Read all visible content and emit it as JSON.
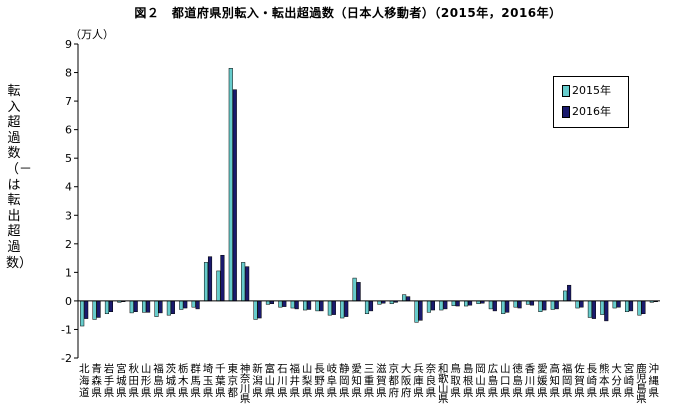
{
  "title": "図２　都道府県別転入・転出超過数（日本人移動者）（2015年，2016年）",
  "unit": "（万人）",
  "ylabel": "転入超過数（－は転出超過数）",
  "legend": {
    "items": [
      {
        "label": "2015年",
        "color": "#66cccc"
      },
      {
        "label": "2016年",
        "color": "#1a1a6e"
      }
    ]
  },
  "chart_data": {
    "type": "bar",
    "title": "図２　都道府県別転入・転出超過数（日本人移動者）（2015年，2016年）",
    "ylabel": "転入超過数（－は転出超過数）",
    "unit": "（万人）",
    "ylim": [
      -2,
      9
    ],
    "yticks": [
      -2,
      -1,
      0,
      1,
      2,
      3,
      4,
      5,
      6,
      7,
      8,
      9
    ],
    "grid": false,
    "legend_position": "top-right",
    "categories": [
      "北海道",
      "青森県",
      "岩手県",
      "宮城県",
      "秋田県",
      "山形県",
      "福島県",
      "茨城県",
      "栃木県",
      "群馬県",
      "埼玉県",
      "千葉県",
      "東京都",
      "神奈川県",
      "新潟県",
      "富山県",
      "石川県",
      "福井県",
      "山梨県",
      "長野県",
      "岐阜県",
      "静岡県",
      "愛知県",
      "三重県",
      "滋賀県",
      "京都府",
      "大阪府",
      "兵庫県",
      "奈良県",
      "和歌山県",
      "鳥取県",
      "島根県",
      "岡山県",
      "広島県",
      "山口県",
      "徳島県",
      "香川県",
      "愛媛県",
      "高知県",
      "福岡県",
      "佐賀県",
      "長崎県",
      "熊本県",
      "大分県",
      "宮崎県",
      "鹿児島県",
      "沖縄県"
    ],
    "category_labels": [
      "北海道",
      "青森県",
      "岩手県",
      "宮城県",
      "秋田県",
      "山形県",
      "福島県",
      "茨城県",
      "栃木県",
      "群馬県",
      "埼玉県",
      "千葉県",
      "東京都",
      "神奈川県",
      "新潟県",
      "富山県",
      "石川県",
      "福井県",
      "山梨県",
      "長野県",
      "岐阜県",
      "静岡県",
      "愛知県",
      "三重県",
      "滋賀県",
      "京都府",
      "大阪府",
      "兵庫県",
      "奈良県",
      "和歌山県",
      "鳥取県",
      "島根県",
      "岡山県",
      "広島県",
      "山口県",
      "徳島県",
      "香川県",
      "愛媛県",
      "高知県",
      "福岡県",
      "佐賀県",
      "長崎県",
      "熊本県",
      "大分県",
      "宮崎県",
      "鹿児島県",
      "沖縄県"
    ],
    "series": [
      {
        "name": "2015年",
        "color": "#66cccc",
        "values": [
          -0.88,
          -0.65,
          -0.45,
          -0.05,
          -0.42,
          -0.4,
          -0.55,
          -0.5,
          -0.3,
          -0.22,
          1.35,
          1.05,
          8.15,
          1.35,
          -0.65,
          -0.12,
          -0.22,
          -0.25,
          -0.32,
          -0.35,
          -0.5,
          -0.6,
          0.8,
          -0.45,
          -0.12,
          -0.1,
          0.22,
          -0.75,
          -0.4,
          -0.32,
          -0.17,
          -0.18,
          -0.1,
          -0.28,
          -0.45,
          -0.22,
          -0.12,
          -0.38,
          -0.3,
          0.35,
          -0.25,
          -0.58,
          -0.48,
          -0.25,
          -0.38,
          -0.5,
          -0.05
        ]
      },
      {
        "name": "2016年",
        "color": "#1a1a6e",
        "values": [
          -0.62,
          -0.58,
          -0.38,
          -0.02,
          -0.38,
          -0.4,
          -0.42,
          -0.45,
          -0.25,
          -0.28,
          1.55,
          1.6,
          7.4,
          1.2,
          -0.6,
          -0.1,
          -0.2,
          -0.28,
          -0.3,
          -0.35,
          -0.48,
          -0.55,
          0.65,
          -0.35,
          -0.08,
          -0.05,
          0.15,
          -0.68,
          -0.32,
          -0.28,
          -0.18,
          -0.15,
          -0.08,
          -0.35,
          -0.4,
          -0.25,
          -0.15,
          -0.32,
          -0.28,
          0.55,
          -0.22,
          -0.62,
          -0.7,
          -0.22,
          -0.35,
          -0.45,
          -0.03
        ]
      }
    ]
  }
}
